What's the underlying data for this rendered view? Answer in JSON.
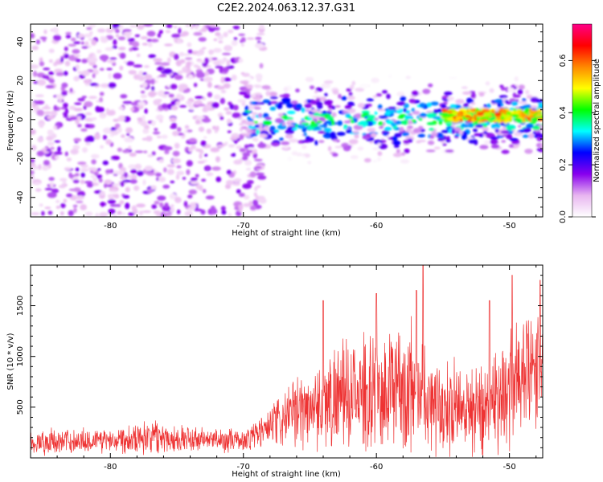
{
  "figure": {
    "title": "C2E2.2024.063.12.37.G31"
  },
  "chart_data": [
    {
      "type": "heatmap",
      "xlabel": "Height of straight line (km)",
      "ylabel": "Frequency (Hz)",
      "xlim": [
        -86,
        -47.5
      ],
      "ylim": [
        -50,
        49
      ],
      "x_ticks": [
        -80,
        -70,
        -60,
        -50
      ],
      "y_ticks": [
        -40,
        -20,
        0,
        20,
        40
      ],
      "regions": [
        {
          "x_range": [
            -86,
            -70
          ],
          "y_range": [
            -50,
            49
          ],
          "level": 0.1
        },
        {
          "x_range": [
            -70,
            -47.5
          ],
          "y_center": 0,
          "y_halfwidth": 8,
          "level": 0.3
        },
        {
          "x_range": [
            -55,
            -47.5
          ],
          "y_center": 2,
          "y_halfwidth": 3,
          "level": 0.5
        }
      ],
      "colorbar": {
        "label": "Normalized spectral amplitude",
        "range": [
          0.0,
          0.74
        ],
        "ticks": [
          "0.0",
          "0.2",
          "0.4",
          "0.6"
        ],
        "colors": [
          "#ffffff",
          "#e8b6f0",
          "#8800ee",
          "#0000ff",
          "#00ffff",
          "#00ff00",
          "#ffff00",
          "#ff8800",
          "#ff0000",
          "#ff0088"
        ]
      }
    },
    {
      "type": "line",
      "xlabel": "Height of straight line (km)",
      "ylabel": "SNR (10 * v/v)",
      "xlim": [
        -86,
        -47.5
      ],
      "ylim": [
        0,
        1900
      ],
      "x_ticks": [
        -80,
        -70,
        -60,
        -50
      ],
      "y_ticks": [
        500,
        1000,
        1500
      ],
      "series": [
        {
          "color": "#ee3333",
          "envelope": [
            {
              "x": -86,
              "base": 150,
              "amp": 150
            },
            {
              "x": -80,
              "base": 180,
              "amp": 150
            },
            {
              "x": -77,
              "base": 220,
              "amp": 200
            },
            {
              "x": -74,
              "base": 180,
              "amp": 150
            },
            {
              "x": -70,
              "base": 170,
              "amp": 130
            },
            {
              "x": -68,
              "base": 300,
              "amp": 250
            },
            {
              "x": -66,
              "base": 450,
              "amp": 400
            },
            {
              "x": -63,
              "base": 600,
              "amp": 600
            },
            {
              "x": -60,
              "base": 650,
              "amp": 650
            },
            {
              "x": -57,
              "base": 700,
              "amp": 800
            },
            {
              "x": -55,
              "base": 500,
              "amp": 500
            },
            {
              "x": -52,
              "base": 500,
              "amp": 600
            },
            {
              "x": -50,
              "base": 700,
              "amp": 700
            },
            {
              "x": -47.5,
              "base": 900,
              "amp": 700
            }
          ],
          "peaks": [
            {
              "x": -64,
              "y": 1550
            },
            {
              "x": -60,
              "y": 1620
            },
            {
              "x": -57,
              "y": 1650
            },
            {
              "x": -56.5,
              "y": 1900
            },
            {
              "x": -51.5,
              "y": 1550
            },
            {
              "x": -49.8,
              "y": 1800
            },
            {
              "x": -47.7,
              "y": 1750
            }
          ]
        }
      ]
    }
  ]
}
